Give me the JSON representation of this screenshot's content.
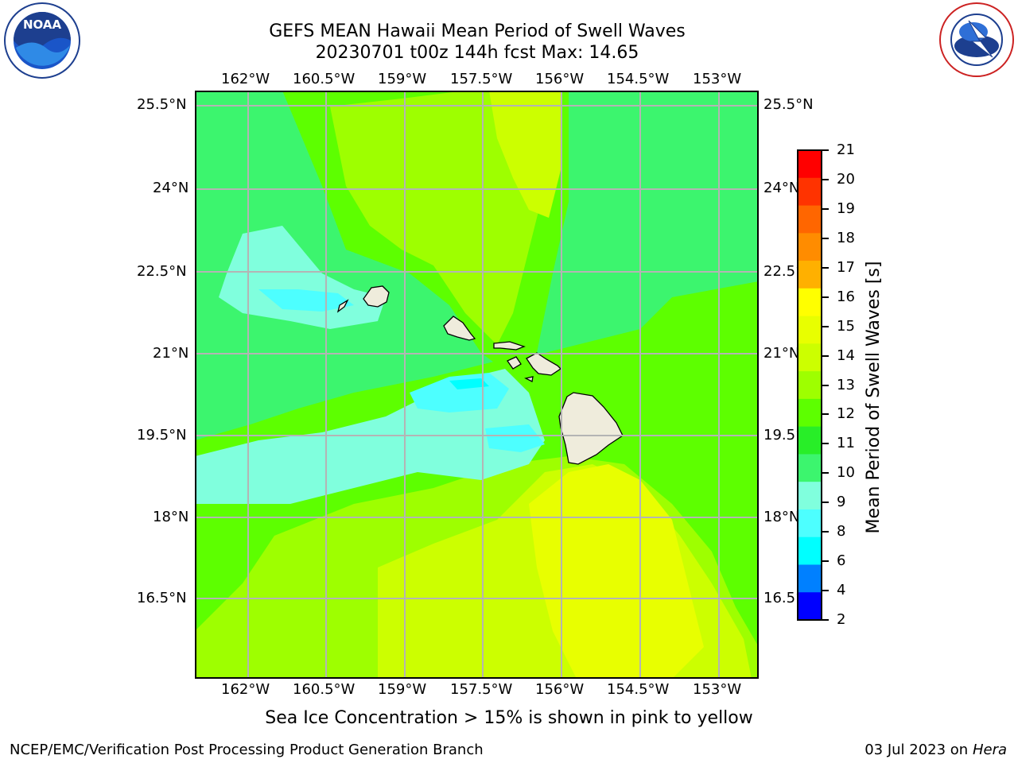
{
  "header": {
    "title_line1": "GEFS MEAN Hawaii Mean Period of Swell Waves",
    "title_line2": "20230701 t00z 144h fcst   Max: 14.65",
    "noaa_logo_text": "NOAA",
    "noaa_ring_text": "NATIONAL OCEANIC AND ATMOSPHERIC ADMINISTRATION · U.S. DEPARTMENT OF COMMERCE",
    "nws_ring_text": "NATIONAL WEATHER SERVICE"
  },
  "map": {
    "lon_labels": [
      "162°W",
      "160.5°W",
      "159°W",
      "157.5°W",
      "156°W",
      "154.5°W",
      "153°W"
    ],
    "lat_labels": [
      "25.5°N",
      "24°N",
      "22.5°N",
      "21°N",
      "19.5°N",
      "18°N",
      "16.5°N"
    ],
    "land_color": "#efecdc",
    "grid_color": "#b4b4b4"
  },
  "colorbar": {
    "label": "Mean Period of Swell Waves [s]",
    "ticks": [
      "21",
      "20",
      "19",
      "18",
      "17",
      "16",
      "15",
      "14",
      "13",
      "12",
      "11",
      "10",
      "9",
      "8",
      "6",
      "4",
      "2"
    ],
    "colors": [
      "#ff0000",
      "#ff3300",
      "#ff6600",
      "#ff8c00",
      "#ffb000",
      "#ffff00",
      "#e8ff00",
      "#ccff00",
      "#9eff00",
      "#5dff00",
      "#28ee28",
      "#3cf56e",
      "#80ffdd",
      "#4dffff",
      "#00ffff",
      "#0080ff",
      "#0000ff"
    ]
  },
  "notes": {
    "sea_ice": "Sea Ice Concentration > 15% is shown in pink to yellow"
  },
  "footer": {
    "left": "NCEP/EMC/Verification Post Processing Product Generation Branch",
    "right_prefix": "03 Jul 2023 on ",
    "right_machine": "Hera"
  }
}
